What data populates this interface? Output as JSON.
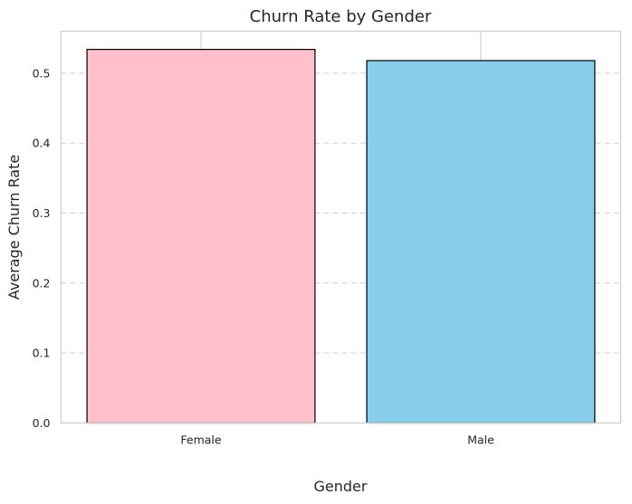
{
  "chart_data": {
    "type": "bar",
    "title": "Churn Rate by Gender",
    "xlabel": "Gender",
    "ylabel": "Average Churn Rate",
    "categories": [
      "Female",
      "Male"
    ],
    "values": [
      0.534,
      0.518
    ],
    "colors": [
      "#FFC0CB",
      "#87CEEB"
    ],
    "edge_color": "#000000",
    "ylim": [
      0,
      0.56
    ],
    "yticks": [
      "0.0",
      "0.1",
      "0.2",
      "0.3",
      "0.4",
      "0.5"
    ],
    "grid": {
      "y": "dashed",
      "x": "solid"
    }
  }
}
